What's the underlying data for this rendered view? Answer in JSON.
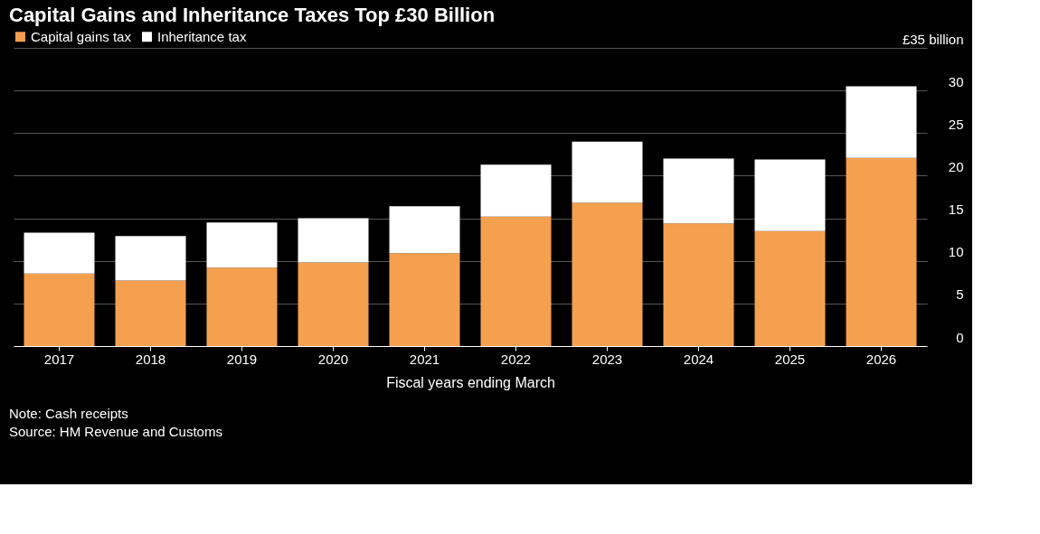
{
  "chart_data": {
    "type": "bar",
    "title": "Capital Gains and Inheritance Taxes Top £30 Billion",
    "xlabel": "Fiscal years ending March",
    "categories": [
      "2017",
      "2018",
      "2019",
      "2020",
      "2021",
      "2022",
      "2023",
      "2024",
      "2025",
      "2026"
    ],
    "series": [
      {
        "name": "Capital gains tax",
        "color": "#f5a04f",
        "values": [
          8.5,
          7.7,
          9.2,
          9.8,
          10.9,
          15.2,
          16.8,
          14.4,
          13.5,
          22.1
        ]
      },
      {
        "name": "Inheritance tax",
        "color": "#ffffff",
        "values": [
          4.8,
          5.2,
          5.3,
          5.2,
          5.5,
          6.1,
          7.2,
          7.6,
          8.4,
          8.4
        ]
      }
    ],
    "stacked": true,
    "ylim": [
      0,
      35
    ],
    "yticks": [
      0,
      5,
      10,
      15,
      20,
      25,
      30,
      {
        "value": 35,
        "label": "£35 billion"
      }
    ],
    "grid": "y",
    "legend": "top left",
    "annotations": [
      "Note: Cash receipts",
      "Source: HM Revenue and Customs"
    ]
  }
}
